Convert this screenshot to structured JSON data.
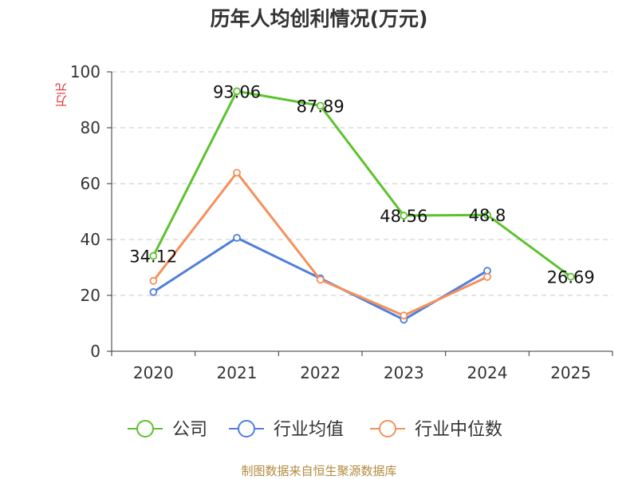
{
  "chart_data": {
    "type": "line",
    "title": "历年人均创利情况(万元)",
    "ylabel": "万元",
    "xlabel": "",
    "categories": [
      "2020",
      "2021",
      "2022",
      "2023",
      "2024",
      "2025"
    ],
    "ylim": [
      0,
      100
    ],
    "yticks": [
      0,
      20,
      40,
      60,
      80,
      100
    ],
    "grid": true,
    "legend_position": "bottom",
    "series": [
      {
        "name": "公司",
        "color": "#5cc22e",
        "values": [
          34.12,
          93.06,
          87.89,
          48.56,
          48.8,
          26.69
        ],
        "labels": [
          "34.12",
          "93.06",
          "87.89",
          "48.56",
          "48.8",
          "26.69"
        ]
      },
      {
        "name": "行业均值",
        "color": "#4f7fdc",
        "values": [
          21.2,
          40.6,
          26.1,
          11.3,
          28.8,
          null
        ]
      },
      {
        "name": "行业中位数",
        "color": "#f4915c",
        "values": [
          25.2,
          63.9,
          25.6,
          12.8,
          26.6,
          null
        ]
      }
    ]
  },
  "footer": {
    "source": "制图数据来自恒生聚源数据库"
  }
}
